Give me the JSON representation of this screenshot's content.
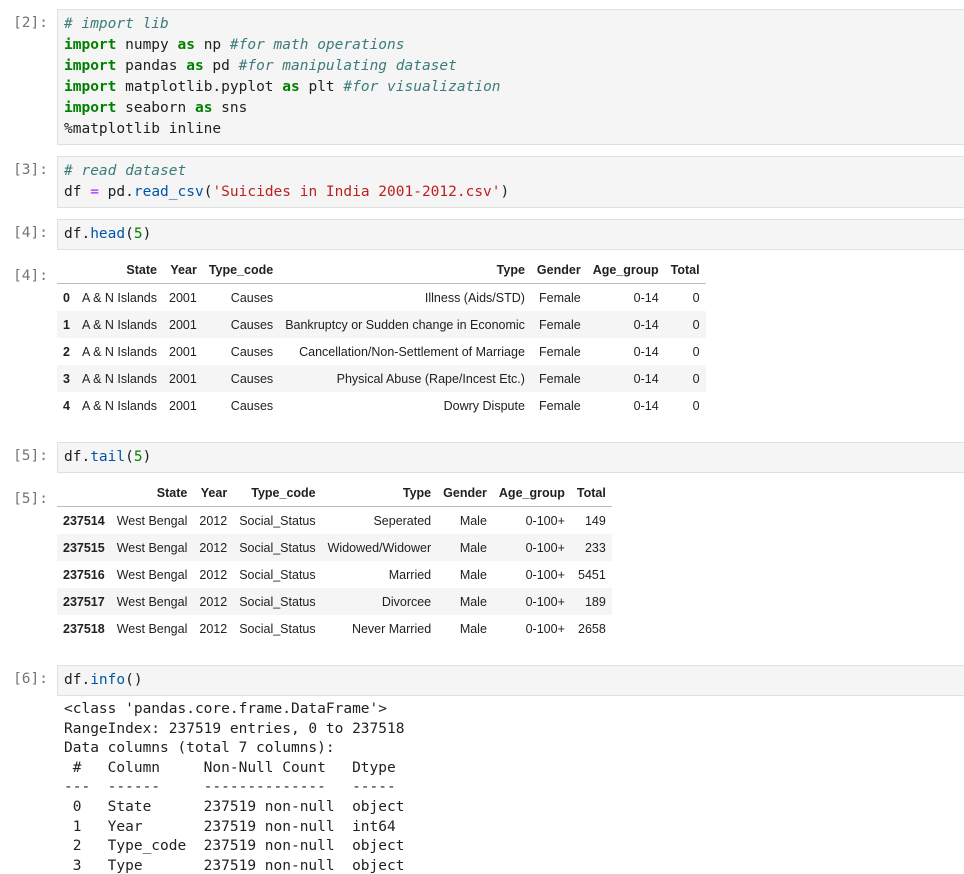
{
  "cells": [
    {
      "prompt_in": "[2]:",
      "code": [
        [
          {
            "text": "# import lib",
            "color": "#3d7b7b",
            "italic": true
          }
        ],
        [
          {
            "text": "import",
            "color": "#008000",
            "bold": true
          },
          " numpy ",
          {
            "text": "as",
            "color": "#008000",
            "bold": true
          },
          " np ",
          {
            "text": "#for math operations",
            "color": "#3d7b7b",
            "italic": true
          }
        ],
        [
          {
            "text": "import",
            "color": "#008000",
            "bold": true
          },
          " pandas ",
          {
            "text": "as",
            "color": "#008000",
            "bold": true
          },
          " pd ",
          {
            "text": "#for manipulating dataset",
            "color": "#3d7b7b",
            "italic": true
          }
        ],
        [
          {
            "text": "import",
            "color": "#008000",
            "bold": true
          },
          " matplotlib.pyplot ",
          {
            "text": "as",
            "color": "#008000",
            "bold": true
          },
          " plt ",
          {
            "text": "#for visualization",
            "color": "#3d7b7b",
            "italic": true
          }
        ],
        [
          {
            "text": "import",
            "color": "#008000",
            "bold": true
          },
          " seaborn ",
          {
            "text": "as",
            "color": "#008000",
            "bold": true
          },
          " sns"
        ],
        [
          "%matplotlib inline"
        ]
      ]
    },
    {
      "prompt_in": "[3]:",
      "code": [
        [
          {
            "text": "# read dataset",
            "color": "#3d7b7b",
            "italic": true
          }
        ],
        [
          "df ",
          {
            "text": "=",
            "color": "#aa22ff"
          },
          " pd.",
          {
            "text": "read_csv",
            "color": "#0055aa"
          },
          "(",
          {
            "text": "'Suicides in India 2001-2012.csv'",
            "color": "#ba2121"
          },
          ")"
        ]
      ]
    },
    {
      "prompt_in": "[4]:",
      "code": [
        [
          "df.",
          {
            "text": "head",
            "color": "#0055aa"
          },
          "(",
          {
            "text": "5",
            "color": "#008000"
          },
          ")"
        ]
      ],
      "prompt_out": "[4]:",
      "table": {
        "columns": [
          "State",
          "Year",
          "Type_code",
          "Type",
          "Gender",
          "Age_group",
          "Total"
        ],
        "rows": [
          [
            0,
            "A & N Islands",
            2001,
            "Causes",
            "Illness (Aids/STD)",
            "Female",
            "0-14",
            0
          ],
          [
            1,
            "A & N Islands",
            2001,
            "Causes",
            "Bankruptcy or Sudden change in Economic",
            "Female",
            "0-14",
            0
          ],
          [
            2,
            "A & N Islands",
            2001,
            "Causes",
            "Cancellation/Non-Settlement of Marriage",
            "Female",
            "0-14",
            0
          ],
          [
            3,
            "A & N Islands",
            2001,
            "Causes",
            "Physical Abuse (Rape/Incest Etc.)",
            "Female",
            "0-14",
            0
          ],
          [
            4,
            "A & N Islands",
            2001,
            "Causes",
            "Dowry Dispute",
            "Female",
            "0-14",
            0
          ]
        ]
      }
    },
    {
      "prompt_in": "[5]:",
      "code": [
        [
          "df.",
          {
            "text": "tail",
            "color": "#0055aa"
          },
          "(",
          {
            "text": "5",
            "color": "#008000"
          },
          ")"
        ]
      ],
      "prompt_out": "[5]:",
      "table": {
        "columns": [
          "State",
          "Year",
          "Type_code",
          "Type",
          "Gender",
          "Age_group",
          "Total"
        ],
        "rows": [
          [
            237514,
            "West Bengal",
            2012,
            "Social_Status",
            "Seperated",
            "Male",
            "0-100+",
            149
          ],
          [
            237515,
            "West Bengal",
            2012,
            "Social_Status",
            "Widowed/Widower",
            "Male",
            "0-100+",
            233
          ],
          [
            237516,
            "West Bengal",
            2012,
            "Social_Status",
            "Married",
            "Male",
            "0-100+",
            5451
          ],
          [
            237517,
            "West Bengal",
            2012,
            "Social_Status",
            "Divorcee",
            "Male",
            "0-100+",
            189
          ],
          [
            237518,
            "West Bengal",
            2012,
            "Social_Status",
            "Never Married",
            "Male",
            "0-100+",
            2658
          ]
        ]
      }
    },
    {
      "prompt_in": "[6]:",
      "code": [
        [
          "df.",
          {
            "text": "info",
            "color": "#0055aa"
          },
          "()"
        ]
      ],
      "output_text": [
        "<class 'pandas.core.frame.DataFrame'>",
        "RangeIndex: 237519 entries, 0 to 237518",
        "Data columns (total 7 columns):",
        " #   Column     Non-Null Count   Dtype ",
        "---  ------     --------------   ----- ",
        " 0   State      237519 non-null  object",
        " 1   Year       237519 non-null  int64 ",
        " 2   Type_code  237519 non-null  object",
        " 3   Type       237519 non-null  object"
      ]
    }
  ]
}
